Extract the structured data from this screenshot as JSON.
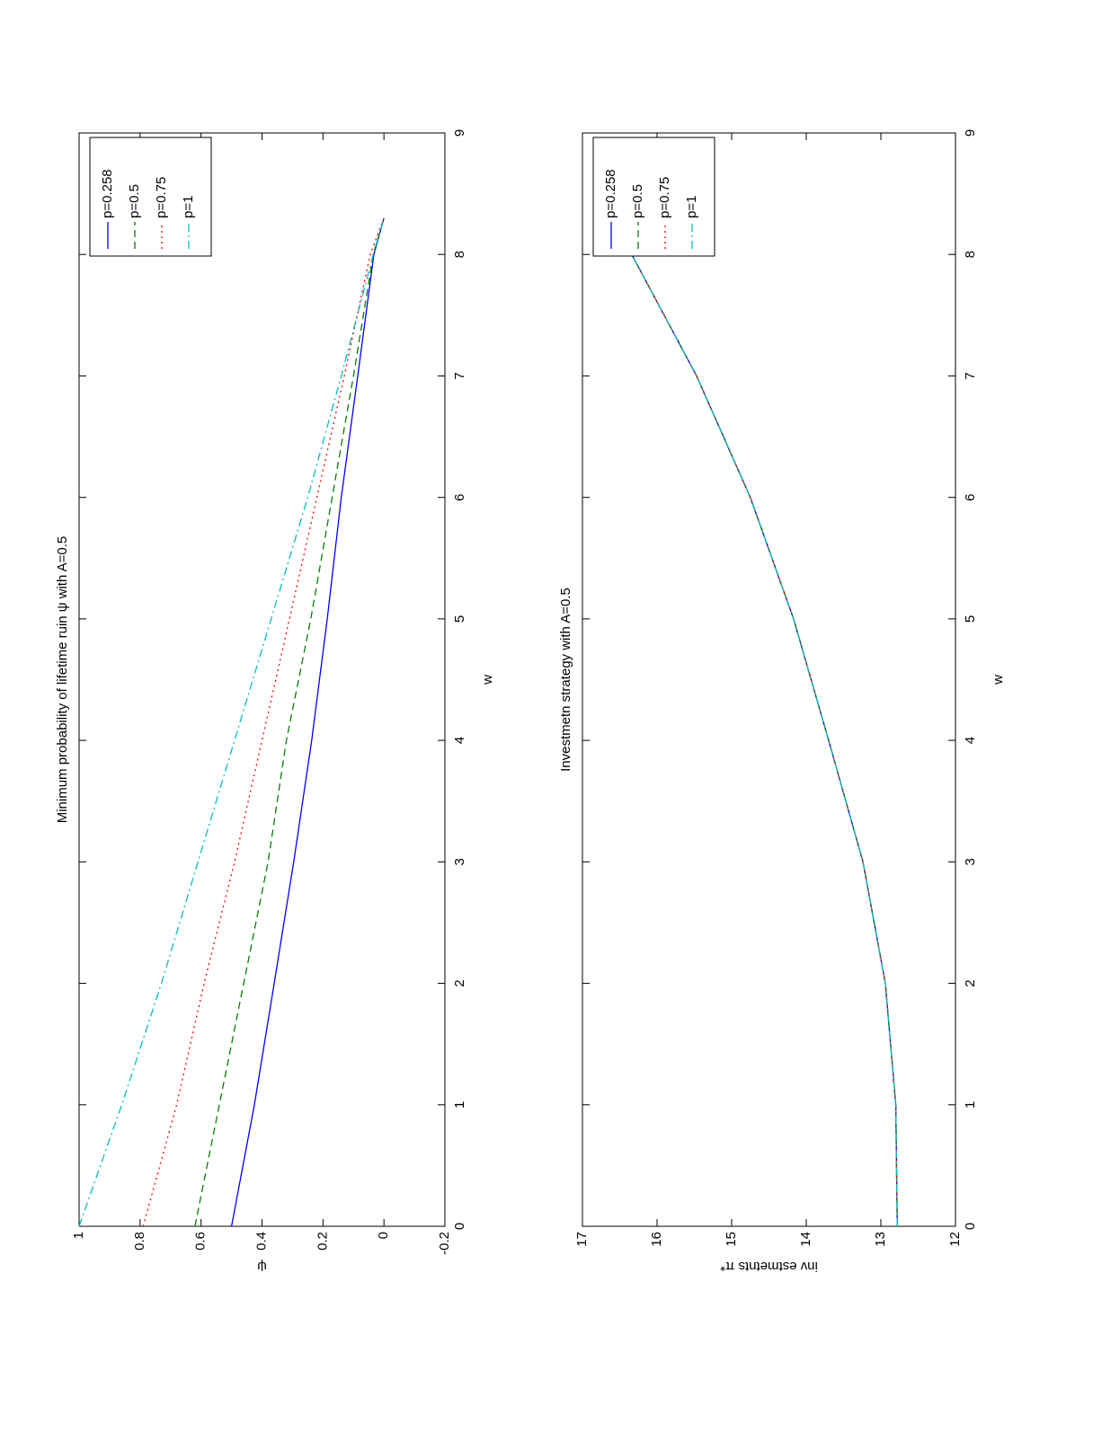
{
  "chart_data": [
    {
      "type": "line",
      "title": "Minimum probability of lifetime ruin ψ with A=0.5",
      "x_label": "w",
      "y_label": "ψ",
      "x": [
        0,
        1,
        2,
        3,
        4,
        5,
        6,
        7,
        8,
        8.3
      ],
      "series": [
        {
          "name": "p=0.258",
          "color": "#0000ff",
          "linestyle": "solid",
          "values": [
            0.5,
            0.425,
            0.36,
            0.296,
            0.237,
            0.186,
            0.14,
            0.086,
            0.033,
            0
          ]
        },
        {
          "name": "p=0.5",
          "color": "#008000",
          "linestyle": "dashed",
          "values": [
            0.62,
            0.54,
            0.46,
            0.38,
            0.32,
            0.24,
            0.17,
            0.1,
            0.035,
            0
          ]
        },
        {
          "name": "p=0.75",
          "color": "#ff0000",
          "linestyle": "dotted",
          "values": [
            0.79,
            0.68,
            0.59,
            0.49,
            0.4,
            0.31,
            0.22,
            0.13,
            0.045,
            0
          ]
        },
        {
          "name": "p=1",
          "color": "#00bfbf",
          "linestyle": "dashdot",
          "values": [
            1,
            0.86,
            0.73,
            0.61,
            0.49,
            0.37,
            0.25,
            0.14,
            0.035,
            0
          ]
        }
      ],
      "xlim": [
        0,
        9
      ],
      "xticks": [
        0,
        1,
        2,
        3,
        4,
        5,
        6,
        7,
        8,
        9
      ],
      "ylim": [
        -0.2,
        1
      ],
      "yticks": [
        -0.2,
        0,
        0.2,
        0.4,
        0.6,
        0.8,
        1
      ],
      "legend": "northeast"
    },
    {
      "type": "line",
      "title": "Investmetn strategy with A=0.5",
      "x_label": "w",
      "y_label": "inv estmetnts π*",
      "x": [
        0,
        1,
        2,
        3,
        4,
        5,
        6,
        7,
        8
      ],
      "series": [
        {
          "name": "p=0.258",
          "color": "#0000ff",
          "linestyle": "solid",
          "values": [
            12.78,
            12.8,
            12.94,
            13.24,
            13.7,
            14.17,
            14.75,
            15.47,
            16.34
          ]
        },
        {
          "name": "p=0.5",
          "color": "#008000",
          "linestyle": "dashed",
          "values": [
            12.78,
            12.8,
            12.94,
            13.24,
            13.7,
            14.17,
            14.75,
            15.47,
            16.34
          ]
        },
        {
          "name": "p=0.75",
          "color": "#ff0000",
          "linestyle": "dotted",
          "values": [
            12.78,
            12.8,
            12.94,
            13.24,
            13.7,
            14.17,
            14.75,
            15.47,
            16.34
          ]
        },
        {
          "name": "p=1",
          "color": "#00bfbf",
          "linestyle": "dashdot",
          "values": [
            12.78,
            12.8,
            12.94,
            13.24,
            13.7,
            14.17,
            14.75,
            15.47,
            16.34
          ]
        }
      ],
      "xlim": [
        0,
        9
      ],
      "xticks": [
        0,
        1,
        2,
        3,
        4,
        5,
        6,
        7,
        8,
        9
      ],
      "ylim": [
        12,
        17
      ],
      "yticks": [
        12,
        13,
        14,
        15,
        16,
        17
      ],
      "legend": "northeast"
    }
  ]
}
